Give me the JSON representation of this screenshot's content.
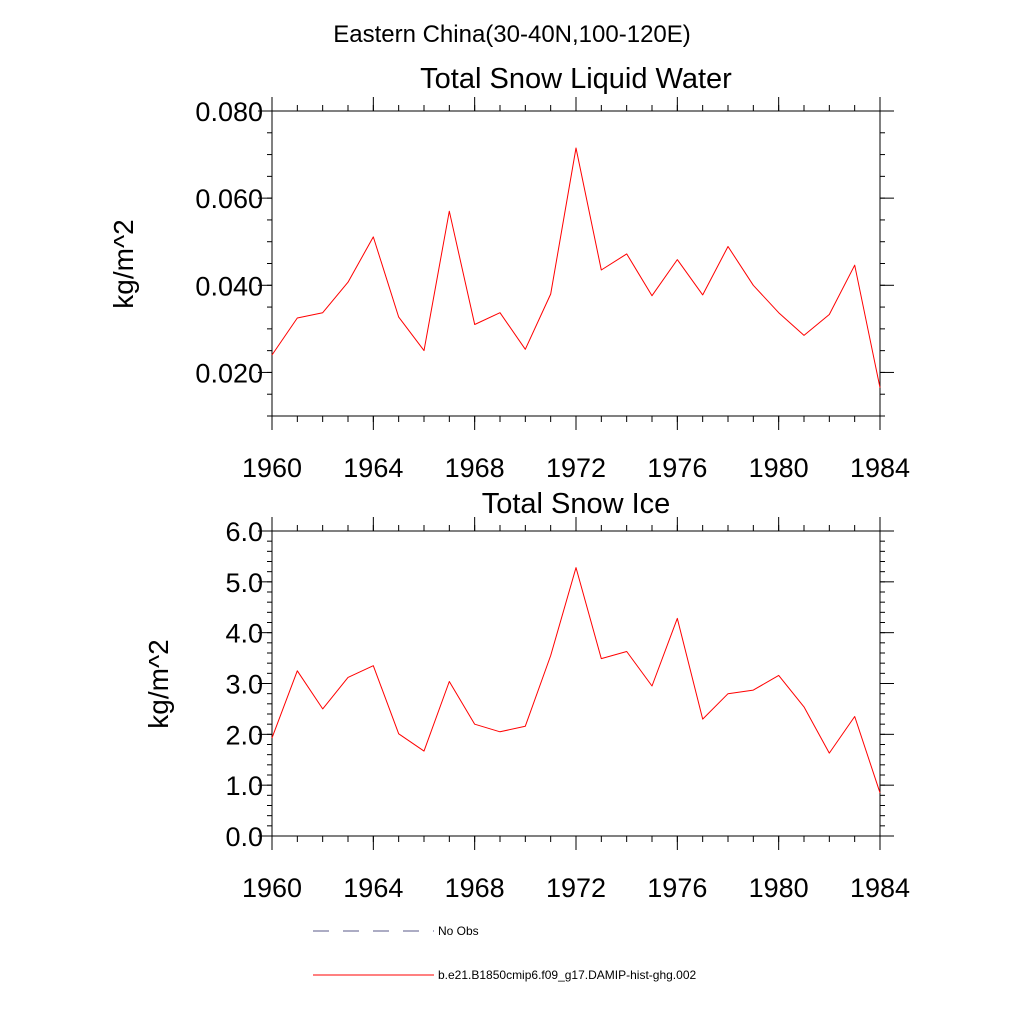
{
  "suptitle": "Eastern China(30-40N,100-120E)",
  "legend": [
    {
      "label": "No Obs",
      "style": "dashed",
      "color": "#5a5a8a"
    },
    {
      "label": "b.e21.B1850cmip6.f09_g17.DAMIP-hist-ghg.002",
      "style": "solid",
      "color": "#ff0000"
    }
  ],
  "chart_data": [
    {
      "type": "line",
      "title": "Total Snow Liquid Water",
      "ylabel": "kg/m^2",
      "xlim": [
        1960,
        1984
      ],
      "ylim": [
        0.01,
        0.08
      ],
      "xticks": [
        1960,
        1964,
        1968,
        1972,
        1976,
        1980,
        1984
      ],
      "xtick_labels": [
        "1960",
        "1964",
        "1968",
        "1972",
        "1976",
        "1980",
        "1984"
      ],
      "yticks": [
        0.02,
        0.04,
        0.06,
        0.08
      ],
      "ytick_labels": [
        "0.020",
        "0.040",
        "0.060",
        "0.080"
      ],
      "series": [
        {
          "name": "b.e21.B1850cmip6.f09_g17.DAMIP-hist-ghg.002",
          "color": "#ff0000",
          "x": [
            1960,
            1961,
            1962,
            1963,
            1964,
            1965,
            1966,
            1967,
            1968,
            1969,
            1970,
            1971,
            1972,
            1973,
            1974,
            1975,
            1976,
            1977,
            1978,
            1979,
            1980,
            1981,
            1982,
            1983,
            1984
          ],
          "y": [
            0.024,
            0.0325,
            0.0337,
            0.0407,
            0.0511,
            0.0327,
            0.025,
            0.057,
            0.031,
            0.0337,
            0.0253,
            0.038,
            0.0715,
            0.0435,
            0.0472,
            0.0376,
            0.0459,
            0.0378,
            0.0489,
            0.04,
            0.0337,
            0.0285,
            0.0333,
            0.0446,
            0.0165
          ]
        }
      ]
    },
    {
      "type": "line",
      "title": "Total Snow Ice",
      "ylabel": "kg/m^2",
      "xlim": [
        1960,
        1984
      ],
      "ylim": [
        0.0,
        6.0
      ],
      "xticks": [
        1960,
        1964,
        1968,
        1972,
        1976,
        1980,
        1984
      ],
      "xtick_labels": [
        "1960",
        "1964",
        "1968",
        "1972",
        "1976",
        "1980",
        "1984"
      ],
      "yticks": [
        0,
        1,
        2,
        3,
        4,
        5,
        6
      ],
      "ytick_labels": [
        "0.0",
        "1.0",
        "2.0",
        "3.0",
        "4.0",
        "5.0",
        "6.0"
      ],
      "series": [
        {
          "name": "b.e21.B1850cmip6.f09_g17.DAMIP-hist-ghg.002",
          "color": "#ff0000",
          "x": [
            1960,
            1961,
            1962,
            1963,
            1964,
            1965,
            1966,
            1967,
            1968,
            1969,
            1970,
            1971,
            1972,
            1973,
            1974,
            1975,
            1976,
            1977,
            1978,
            1979,
            1980,
            1981,
            1982,
            1983,
            1984
          ],
          "y": [
            1.93,
            3.25,
            2.5,
            3.12,
            3.35,
            2.01,
            1.67,
            3.04,
            2.2,
            2.05,
            2.16,
            3.55,
            5.28,
            3.49,
            3.63,
            2.95,
            4.28,
            2.3,
            2.8,
            2.87,
            3.16,
            2.54,
            1.63,
            2.35,
            0.85
          ]
        }
      ]
    }
  ]
}
